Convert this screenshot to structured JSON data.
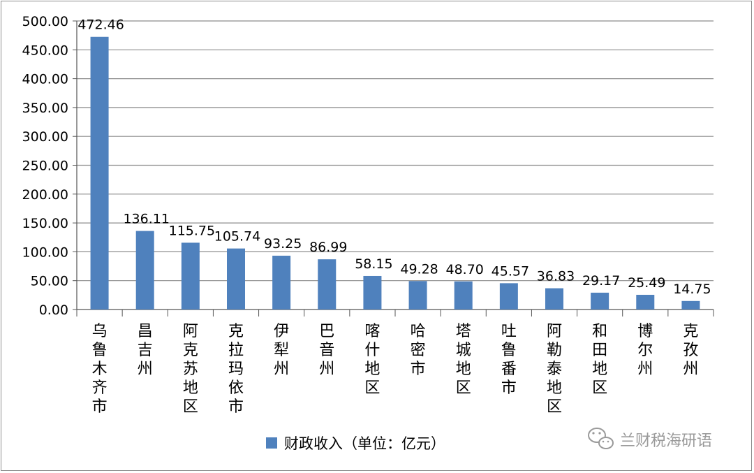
{
  "chart_data": {
    "type": "bar",
    "categories": [
      "乌鲁木齐市",
      "昌吉州",
      "阿克苏地区",
      "克拉玛依市",
      "伊犁州",
      "巴音州",
      "喀什地区",
      "哈密市",
      "塔城地区",
      "吐鲁番市",
      "阿勒泰地区",
      "和田地区",
      "博尔州",
      "克孜州"
    ],
    "series": [
      {
        "name": "财政收入（单位：亿元）",
        "values": [
          472.46,
          136.11,
          115.75,
          105.74,
          93.25,
          86.99,
          58.15,
          49.28,
          48.7,
          45.57,
          36.83,
          29.17,
          25.49,
          14.75
        ],
        "value_labels": [
          "472.46",
          "136.11",
          "115.75",
          "105.74",
          "93.25",
          "86.99",
          "58.15",
          "49.28",
          "48.70",
          "45.57",
          "36.83",
          "29.17",
          "25.49",
          "14.75"
        ],
        "color": "#4f81bd"
      }
    ],
    "ylim": [
      0,
      500
    ],
    "yticks": [
      "0.00",
      "50.00",
      "100.00",
      "150.00",
      "200.00",
      "250.00",
      "300.00",
      "350.00",
      "400.00",
      "450.00",
      "500.00"
    ],
    "ytick_values": [
      0,
      50,
      100,
      150,
      200,
      250,
      300,
      350,
      400,
      450,
      500
    ],
    "grid": true,
    "legend_position": "bottom"
  },
  "watermark": {
    "text": "兰财税海研语",
    "icon": "wechat-icon"
  }
}
